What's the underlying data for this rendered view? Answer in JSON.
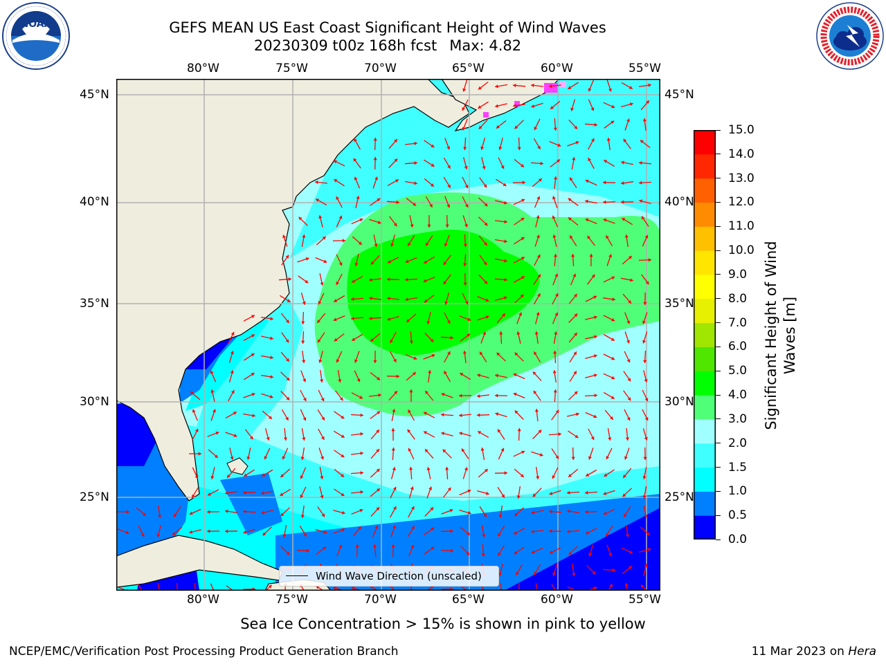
{
  "header": {
    "title_line1": "GEFS MEAN US East Coast Significant Height of Wind Waves",
    "title_date": "20230309 t00z 168h fcst",
    "title_max": "Max: 4.82"
  },
  "logos": {
    "left": {
      "name": "noaa-logo",
      "text": "NOAA",
      "ring_text": "NATIONAL OCEANIC AND ATMOSPHERIC ADMINISTRATION · U.S. DEPARTMENT OF COMMERCE"
    },
    "right": {
      "name": "nws-logo",
      "ring_text": "NATIONAL WEATHER SERVICE"
    }
  },
  "map": {
    "longitude_ticks": [
      "80°W",
      "75°W",
      "70°W",
      "65°W",
      "60°W",
      "55°W"
    ],
    "latitude_ticks": [
      "45°N",
      "40°N",
      "35°N",
      "30°N",
      "25°N"
    ],
    "legend_label": "Wind Wave Direction (unscaled)",
    "colors": {
      "land": "#efedde",
      "gridline": "#b0b0b0",
      "arrow": "#ff0000",
      "coast": "#000000"
    }
  },
  "chart_data": {
    "type": "heatmap",
    "colorbar": {
      "label": "Significant Height of Wind Waves [m]",
      "tick_labels": [
        "0.0",
        "0.5",
        "1.0",
        "1.5",
        "2.0",
        "3.0",
        "4.0",
        "5.0",
        "6.0",
        "7.0",
        "8.0",
        "9.0",
        "10.0",
        "11.0",
        "12.0",
        "13.0",
        "14.0",
        "15.0"
      ],
      "colors": [
        "#0000ff",
        "#0080ff",
        "#00ffff",
        "#40ffff",
        "#a0ffff",
        "#50ff78",
        "#00ff00",
        "#50e600",
        "#a0e600",
        "#e6f000",
        "#ffff00",
        "#ffe600",
        "#ffc000",
        "#ff8c00",
        "#ff6000",
        "#ff2800",
        "#ff0000"
      ]
    },
    "max_value": 4.82,
    "units": "m"
  },
  "notes": {
    "ice": "Sea Ice Concentration > 15% is shown in pink to yellow",
    "producer": "NCEP/EMC/Verification Post Processing Product Generation Branch",
    "date_prefix": "11 Mar 2023 on ",
    "machine": "Hera"
  }
}
